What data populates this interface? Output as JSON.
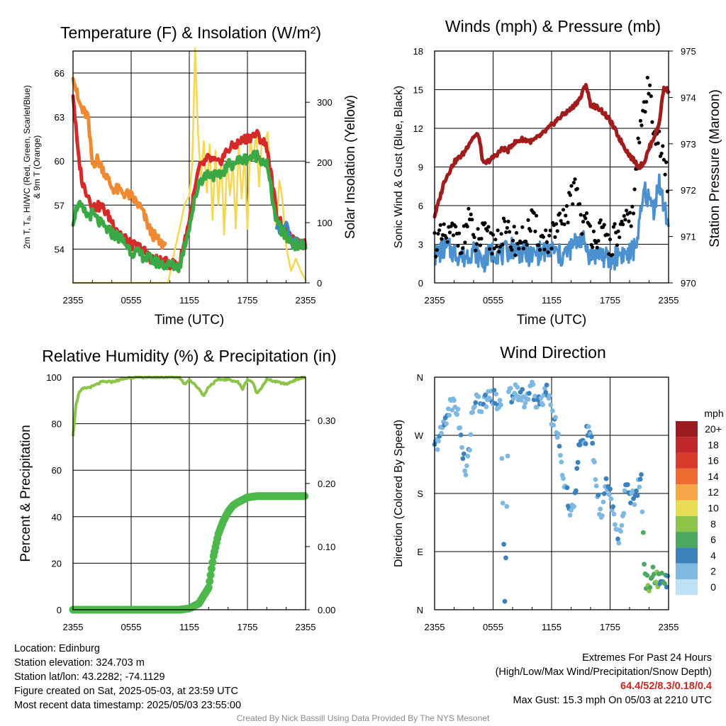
{
  "panels": {
    "temp": {
      "title": "Temperature (F) & Insolation (W/m²)",
      "xlabel": "Time (UTC)",
      "ylabel_left_line1": "2m T, Tₐ, HI/WC (Red, Green, Scarlet/Blue)",
      "ylabel_left_line2": "& 9m T (Orange)",
      "ylabel_right": "Solar Insolation (Yellow)",
      "x_ticks": [
        "2355",
        "0555",
        "1155",
        "1755",
        "2355"
      ],
      "y_ticks_left": [
        "54",
        "57",
        "60",
        "63",
        "66"
      ],
      "y_ticks_right": [
        "0",
        "100",
        "200",
        "300"
      ]
    },
    "wind": {
      "title": "Winds (mph) & Pressure (mb)",
      "xlabel": "Time (UTC)",
      "ylabel_left": "Sonic Wind & Gust (Blue, Black)",
      "ylabel_right": "Station Pressure (Maroon)",
      "x_ticks": [
        "2355",
        "0555",
        "1155",
        "1755",
        "2355"
      ],
      "y_ticks_left": [
        "0",
        "3",
        "6",
        "9",
        "12",
        "15",
        "18"
      ],
      "y_ticks_right": [
        "970",
        "971",
        "972",
        "973",
        "974",
        "975"
      ]
    },
    "rh": {
      "title": "Relative Humidity (%) & Precipitation (in)",
      "ylabel_left": "Percent & Precipitation",
      "x_ticks": [
        "2355",
        "0555",
        "1155",
        "1755",
        "2355"
      ],
      "y_ticks_left": [
        "0",
        "20",
        "40",
        "60",
        "80",
        "100"
      ],
      "y_ticks_right": [
        "0.00",
        "0.10",
        "0.20",
        "0.30"
      ]
    },
    "wdir": {
      "title": "Wind Direction",
      "ylabel_left": "Direction (Colored By Speed)",
      "x_ticks": [
        "2355",
        "0555",
        "1155",
        "1755",
        "2355"
      ],
      "y_ticks_left": [
        "N",
        "E",
        "S",
        "W",
        "N"
      ],
      "legend_title": "mph",
      "legend_labels": [
        "20+",
        "18",
        "16",
        "14",
        "12",
        "10",
        "8",
        "6",
        "4",
        "2",
        "0"
      ],
      "legend_colors": [
        "#9b1c1f",
        "#c0262a",
        "#d93a2b",
        "#ef6a2e",
        "#f7a647",
        "#e8dc55",
        "#8cc44a",
        "#4ba85e",
        "#3b82bd",
        "#7fb8e0",
        "#bfe1f5"
      ]
    }
  },
  "info": {
    "location": "Location: Edinburg",
    "elevation": "Station elevation: 324.703 m",
    "latlon": "Station lat/lon: 43.2282; -74.1129",
    "created": "Figure created on Sat, 2025-05-03, at 23:59 UTC",
    "recent": "Most recent data timestamp: 2025/05/03 23:55:00",
    "extremes_title": "Extremes For Past 24 Hours",
    "extremes_desc": "(High/Low/Max Wind/Precipitation/Snow Depth)",
    "extremes_values": "64.4/52/8.3/0.18/0.4",
    "max_gust": "Max Gust: 15.3 mph On 05/03 at 2210 UTC",
    "credit": "Created By Nick Bassill Using Data Provided By The NYS Mesonet"
  },
  "colors": {
    "temp": "#d42a2a",
    "dewpoint": "#3aa845",
    "nine_m": "#f08a32",
    "scarlet_blue": "#3b86c6",
    "solar": "#f5d850",
    "pressure": "#a11d1d",
    "wind": "#4b90cf",
    "gust": "#000000",
    "rh": "#8cc44a",
    "precip": "#4cb84b"
  },
  "chart_data": [
    {
      "type": "line",
      "title": "Temperature (F) & Insolation (W/m²)",
      "xlabel": "Time (UTC)",
      "x_unit": "hours since 2355 UTC",
      "ylim": [
        51.7,
        67.5
      ],
      "y2lim": [
        0,
        385
      ],
      "series": [
        {
          "name": "2m T (Red)",
          "axis": "left",
          "x": [
            0,
            0.5,
            1,
            1.5,
            2,
            3,
            4,
            5,
            6,
            7,
            8,
            9,
            10,
            11,
            12,
            13,
            14,
            15,
            16,
            17,
            18,
            19,
            20,
            21,
            22,
            23,
            24
          ],
          "values": [
            64.6,
            60.6,
            58.4,
            57.8,
            56.9,
            56.9,
            55.9,
            55.0,
            54.3,
            54.1,
            53.4,
            53.2,
            53.0,
            53.0,
            56.0,
            59.5,
            60.2,
            59.8,
            60.8,
            61.2,
            61.6,
            61.8,
            61.0,
            56.5,
            55.0,
            54.4,
            54.3
          ]
        },
        {
          "name": "2m Td (Green)",
          "axis": "left",
          "x": [
            0,
            0.5,
            1,
            1.5,
            2,
            3,
            4,
            5,
            6,
            7,
            8,
            9,
            10,
            11,
            12,
            13,
            14,
            15,
            16,
            17,
            18,
            19,
            20,
            21,
            22,
            23,
            24
          ],
          "values": [
            56.0,
            57.1,
            56.6,
            56.3,
            56.4,
            55.6,
            55.1,
            54.7,
            53.9,
            53.6,
            53.3,
            53.0,
            52.9,
            52.8,
            55.6,
            58.6,
            59.2,
            58.9,
            59.7,
            60.0,
            60.2,
            60.4,
            59.8,
            55.8,
            54.8,
            54.3,
            54.2
          ]
        },
        {
          "name": "HI/WC (Scarlet/Blue)",
          "axis": "left",
          "x": [
            21,
            21.5,
            22,
            22.5,
            23,
            23.5,
            24
          ],
          "values": [
            55.6,
            55.2,
            55.8,
            54.8,
            54.5,
            54.3,
            54.2
          ]
        },
        {
          "name": "9m T (Orange)",
          "axis": "left",
          "x": [
            0,
            0.5,
            1,
            1.5,
            2,
            2.5,
            3,
            4,
            5,
            6,
            7,
            8,
            9,
            9.5
          ],
          "values": [
            66.0,
            64.2,
            63.4,
            63.1,
            59.8,
            60.1,
            59.6,
            58.2,
            57.9,
            57.6,
            56.8,
            55.2,
            54.4,
            54.3
          ]
        },
        {
          "name": "Solar Insolation (Yellow)",
          "axis": "right",
          "x": [
            0,
            2,
            4,
            6,
            8,
            9,
            9.8,
            10,
            10.5,
            11,
            11.5,
            12,
            12.3,
            12.6,
            12.9,
            13.2,
            13.5,
            13.8,
            14.1,
            14.4,
            14.7,
            15,
            15.3,
            15.6,
            15.9,
            16.2,
            16.5,
            16.8,
            17.1,
            17.4,
            17.7,
            18,
            18.3,
            18.6,
            18.9,
            19.2,
            19.5,
            19.8,
            20.1,
            20.4,
            20.7,
            21,
            21.3,
            21.6,
            22,
            22.5,
            23,
            23.5,
            24
          ],
          "values": [
            0,
            0,
            0,
            0,
            0,
            0,
            0,
            15,
            55,
            90,
            130,
            145,
            195,
            390,
            250,
            175,
            235,
            150,
            230,
            105,
            220,
            130,
            210,
            80,
            205,
            145,
            200,
            90,
            230,
            140,
            210,
            90,
            240,
            205,
            250,
            160,
            240,
            235,
            250,
            170,
            120,
            95,
            170,
            140,
            60,
            20,
            40,
            20,
            5
          ]
        }
      ]
    },
    {
      "type": "line",
      "title": "Winds (mph) & Pressure (mb)",
      "xlabel": "Time (UTC)",
      "x_unit": "hours since 2355 UTC",
      "ylim": [
        0,
        18
      ],
      "y2lim": [
        970,
        975
      ],
      "series": [
        {
          "name": "Station Pressure (Maroon)",
          "axis": "right",
          "x": [
            0,
            0.5,
            1,
            1.5,
            2,
            2.5,
            3,
            3.5,
            4,
            4.5,
            5,
            6,
            7,
            7.5,
            8,
            9,
            10,
            11,
            12,
            13,
            14,
            15,
            15.5,
            16,
            17,
            18,
            19,
            20,
            21,
            21.5,
            22,
            23,
            23.5,
            24
          ],
          "values": [
            971.45,
            971.8,
            972.2,
            972.4,
            972.6,
            972.7,
            972.8,
            973.0,
            973.15,
            973.2,
            972.55,
            972.7,
            972.9,
            972.85,
            973.0,
            973.1,
            973.05,
            973.2,
            973.4,
            973.6,
            973.75,
            974.0,
            974.3,
            973.85,
            973.75,
            973.5,
            973.1,
            972.75,
            972.5,
            972.6,
            972.9,
            973.4,
            974.2,
            974.15
          ]
        },
        {
          "name": "Sonic Wind (Blue)",
          "axis": "left",
          "x": [
            0,
            1,
            2,
            3,
            4,
            5,
            6,
            7,
            8,
            9,
            10,
            11,
            12,
            13,
            14,
            15,
            16,
            17,
            18,
            19,
            20,
            20.5,
            21,
            21.5,
            22,
            22.5,
            23,
            23.5,
            24
          ],
          "values": [
            2.1,
            2.7,
            2.4,
            2.0,
            2.6,
            1.6,
            2.5,
            2.2,
            2.8,
            2.3,
            2.1,
            2.4,
            2.6,
            2.0,
            2.7,
            3.6,
            2.1,
            2.3,
            1.6,
            2.3,
            2.2,
            2.7,
            4.3,
            7.2,
            6.4,
            5.8,
            7.9,
            6.0,
            4.5
          ]
        },
        {
          "name": "Gust (Black)",
          "axis": "left",
          "x": [
            0,
            1,
            2,
            3,
            3.5,
            4,
            5,
            6,
            7,
            8,
            9,
            10,
            11,
            12,
            13,
            14,
            14.5,
            15,
            16,
            17,
            18,
            19,
            20,
            20.5,
            21,
            21.5,
            22,
            22.5,
            23,
            23.5,
            24
          ],
          "values": [
            3.2,
            3.4,
            3.8,
            3.3,
            5.5,
            3.0,
            3.6,
            3.1,
            3.9,
            3.4,
            3.2,
            4.6,
            3.3,
            3.5,
            4.4,
            6.4,
            8.2,
            5.0,
            4.0,
            3.8,
            3.0,
            4.0,
            4.7,
            6.7,
            11.4,
            13.7,
            15.3,
            12.3,
            11.3,
            9.2,
            7.5
          ]
        }
      ]
    },
    {
      "type": "line",
      "title": "Relative Humidity (%) & Precipitation (in)",
      "x_unit": "hours since 2355 UTC",
      "ylim": [
        0,
        100
      ],
      "y2lim": [
        0,
        0.3684
      ],
      "series": [
        {
          "name": "Relative Humidity",
          "axis": "left",
          "x": [
            0,
            0.3,
            0.6,
            1,
            2,
            3,
            4,
            5,
            6,
            7,
            8,
            9,
            10,
            11,
            11.5,
            12,
            13,
            13.5,
            14,
            15,
            16,
            17,
            17.5,
            18,
            18.5,
            19,
            20,
            21,
            22,
            23,
            24
          ],
          "values": [
            75,
            88,
            93,
            95,
            96,
            98,
            98,
            99,
            100,
            100,
            100,
            100,
            100,
            100,
            97,
            99,
            95,
            92,
            96,
            99,
            99,
            98,
            95,
            99,
            98,
            93,
            99,
            98,
            97,
            99,
            100
          ]
        },
        {
          "name": "Precipitation",
          "axis": "right",
          "x": [
            0,
            4,
            8,
            11,
            12,
            13,
            14,
            14.5,
            15,
            15.5,
            16,
            16.5,
            17,
            18,
            19,
            20,
            21,
            22,
            23,
            24
          ],
          "values": [
            0,
            0,
            0,
            0,
            0.002,
            0.01,
            0.035,
            0.085,
            0.12,
            0.14,
            0.155,
            0.165,
            0.17,
            0.178,
            0.18,
            0.18,
            0.18,
            0.18,
            0.18,
            0.18
          ]
        }
      ]
    },
    {
      "type": "scatter",
      "title": "Wind Direction",
      "x_unit": "hours since 2355 UTC",
      "ylim": [
        0,
        360
      ],
      "series": [
        {
          "name": "Direction",
          "x": [
            0,
            0.4,
            0.8,
            1.2,
            1.6,
            2,
            2.4,
            2.8,
            3.2,
            3.5,
            3.8,
            4.1,
            4.4,
            4.8,
            5.2,
            5.6,
            6.0,
            6.4,
            6.8,
            7.2,
            7.6,
            8.0,
            8.4,
            8.8,
            9.2,
            9.6,
            10.0,
            10.4,
            10.8,
            11.2,
            11.6,
            12.0,
            12.4,
            12.8,
            13.2,
            13.6,
            14.0,
            14.4,
            14.8,
            15.2,
            15.6,
            16.0,
            16.4,
            16.8,
            17.2,
            17.6,
            18.0,
            18.4,
            18.8,
            19.2,
            19.6,
            20.0,
            20.4,
            20.8,
            21.2,
            21.6,
            22.0,
            22.4,
            22.8,
            23.2,
            23.6,
            24.0
          ],
          "y": [
            250,
            262,
            280,
            300,
            315,
            320,
            305,
            250,
            210,
            240,
            300,
            325,
            320,
            315,
            322,
            330,
            332,
            318,
            325,
            10,
            328,
            335,
            345,
            330,
            325,
            338,
            340,
            320,
            332,
            325,
            345,
            300,
            290,
            260,
            200,
            180,
            150,
            175,
            245,
            265,
            270,
            280,
            215,
            165,
            145,
            200,
            180,
            135,
            110,
            130,
            190,
            180,
            170,
            185,
            200,
            45,
            40,
            55,
            50,
            45,
            40,
            48
          ],
          "speed": [
            3,
            3,
            2,
            3,
            2,
            2,
            3,
            3,
            2,
            3,
            2,
            3,
            2,
            3,
            3,
            2,
            3,
            3,
            2,
            3,
            2,
            3,
            2,
            3,
            3,
            2,
            3,
            2,
            3,
            2,
            3,
            2,
            3,
            3,
            2,
            3,
            2,
            3,
            4,
            3,
            4,
            3,
            2,
            3,
            2,
            3,
            3,
            2,
            3,
            2,
            3,
            4,
            3,
            3,
            3,
            6,
            7,
            6,
            7,
            5,
            6,
            4
          ]
        }
      ]
    }
  ]
}
